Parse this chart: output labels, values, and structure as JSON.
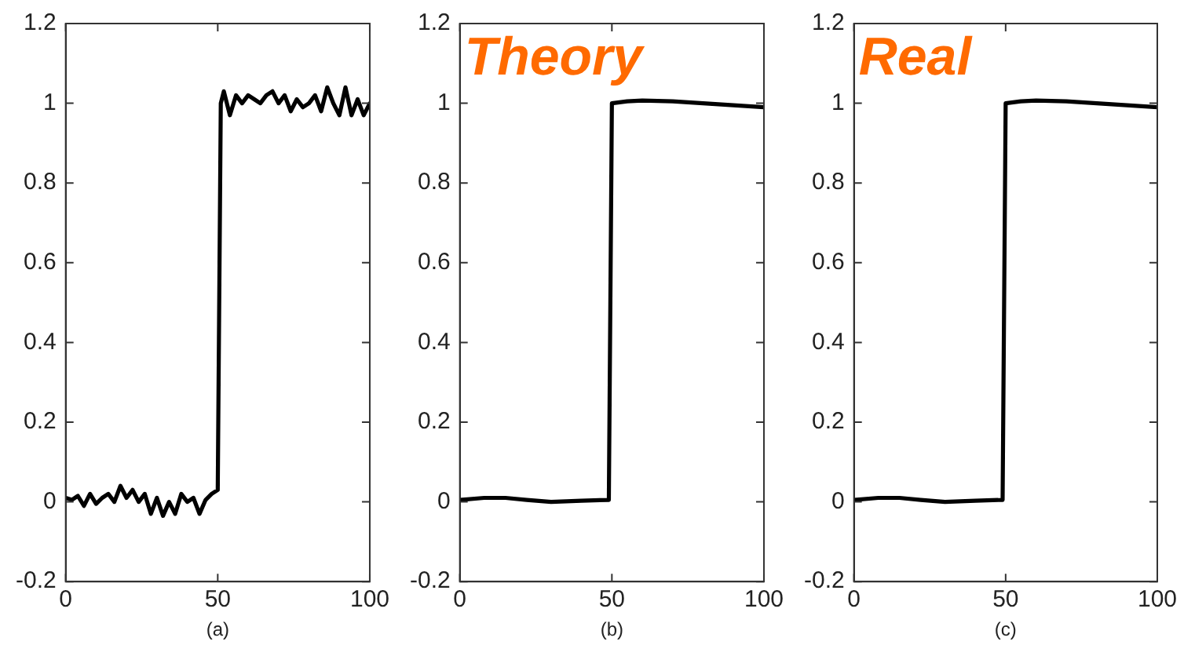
{
  "chart_data": [
    {
      "type": "line",
      "xlabel": "(a)",
      "xlim": [
        0,
        100
      ],
      "xticks": [
        0,
        50,
        100
      ],
      "ylim": [
        -0.2,
        1.2
      ],
      "yticks": [
        -0.2,
        0,
        0.2,
        0.4,
        0.6,
        0.8,
        1,
        1.2
      ],
      "grid": false,
      "legend": false,
      "marker": "none",
      "line_style": "solid",
      "series": [
        {
          "color": "#000000",
          "x": [
            0,
            2,
            4,
            6,
            8,
            10,
            12,
            14,
            16,
            18,
            20,
            22,
            24,
            26,
            28,
            30,
            32,
            34,
            36,
            38,
            40,
            42,
            44,
            46,
            48,
            50,
            51,
            52,
            54,
            56,
            58,
            60,
            62,
            64,
            66,
            68,
            70,
            72,
            74,
            76,
            78,
            80,
            82,
            84,
            86,
            88,
            90,
            92,
            94,
            96,
            98,
            100
          ],
          "values": [
            0.01,
            0.005,
            0.015,
            -0.01,
            0.02,
            -0.005,
            0.01,
            0.02,
            0.0,
            0.04,
            0.01,
            0.03,
            0.0,
            0.02,
            -0.03,
            0.01,
            -0.035,
            0.0,
            -0.03,
            0.02,
            0.0,
            0.01,
            -0.03,
            0.005,
            0.02,
            0.03,
            1.0,
            1.03,
            0.97,
            1.02,
            1.0,
            1.02,
            1.01,
            1.0,
            1.02,
            1.03,
            1.0,
            1.02,
            0.98,
            1.01,
            0.99,
            1.0,
            1.02,
            0.98,
            1.04,
            1.0,
            0.97,
            1.04,
            0.97,
            1.01,
            0.97,
            1.0
          ]
        }
      ]
    },
    {
      "type": "line",
      "title": "Theory",
      "xlabel": "(b)",
      "xlim": [
        0,
        100
      ],
      "xticks": [
        0,
        50,
        100
      ],
      "ylim": [
        -0.2,
        1.2
      ],
      "yticks": [
        -0.2,
        0,
        0.2,
        0.4,
        0.6,
        0.8,
        1,
        1.2
      ],
      "grid": false,
      "legend": false,
      "marker": "none",
      "line_style": "solid",
      "series": [
        {
          "color": "#000000",
          "x": [
            0,
            8,
            15,
            22,
            30,
            40,
            49,
            50,
            55,
            60,
            70,
            80,
            90,
            100
          ],
          "values": [
            0.005,
            0.01,
            0.01,
            0.005,
            0.0,
            0.003,
            0.005,
            1.0,
            1.005,
            1.007,
            1.005,
            1.0,
            0.995,
            0.99
          ]
        }
      ]
    },
    {
      "type": "line",
      "title": "Real",
      "xlabel": "(c)",
      "xlim": [
        0,
        100
      ],
      "xticks": [
        0,
        50,
        100
      ],
      "ylim": [
        -0.2,
        1.2
      ],
      "yticks": [
        -0.2,
        0,
        0.2,
        0.4,
        0.6,
        0.8,
        1,
        1.2
      ],
      "grid": false,
      "legend": false,
      "marker": "none",
      "line_style": "solid",
      "series": [
        {
          "color": "#000000",
          "x": [
            0,
            8,
            15,
            22,
            30,
            40,
            49,
            50,
            55,
            60,
            70,
            80,
            90,
            100
          ],
          "values": [
            0.005,
            0.01,
            0.01,
            0.005,
            0.0,
            0.003,
            0.005,
            1.0,
            1.005,
            1.007,
            1.005,
            1.0,
            0.995,
            0.99
          ]
        }
      ]
    }
  ]
}
